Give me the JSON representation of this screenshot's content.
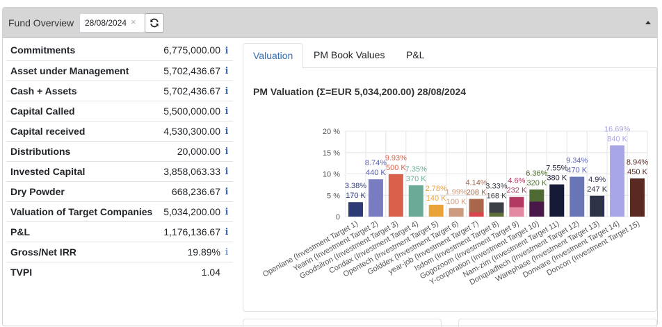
{
  "header": {
    "title": "Fund Overview",
    "date_value": "28/08/2024",
    "clear_glyph": "×"
  },
  "kpis": [
    {
      "label": "Commitments",
      "value": "6,775,000.00"
    },
    {
      "label": "Asset under Management",
      "value": "5,702,436.67"
    },
    {
      "label": "Cash + Assets",
      "value": "5,702,436.67"
    },
    {
      "label": "Capital Called",
      "value": "5,500,000.00"
    },
    {
      "label": "Capital received",
      "value": "4,530,300.00"
    },
    {
      "label": "Distributions",
      "value": "20,000.00"
    },
    {
      "label": "Invested Capital",
      "value": "3,858,063.33"
    },
    {
      "label": "Dry Powder",
      "value": "668,236.67"
    },
    {
      "label": "Valuation of Target Companies",
      "value": "5,034,200.00"
    },
    {
      "label": "P&L",
      "value": "1,176,136.67"
    },
    {
      "label": "Gross/Net IRR",
      "value": "19.89%"
    },
    {
      "label": "TVPI",
      "value": "1.04"
    }
  ],
  "info_glyph": "i",
  "tabs": [
    {
      "label": "Valuation",
      "active": true
    },
    {
      "label": "PM Book Values",
      "active": false
    },
    {
      "label": "P&L",
      "active": false
    }
  ],
  "chart_data": {
    "type": "bar",
    "title": "PM Valuation (Σ=EUR 5,034,200.00) 28/08/2024",
    "xlabel": "",
    "ylabel": "",
    "ylim": [
      0,
      20
    ],
    "yticks": [
      "0",
      "5 %",
      "10 %",
      "15 %",
      "20 %"
    ],
    "grid": true,
    "categories": [
      "Openlane (Investment Target 1)",
      "Yearin (Investment Target 2)",
      "Goodsilron (Investment Target 3)",
      "Condax (Investment Target 4)",
      "Opentech (Investment Target 5)",
      "Golddex (Investment Target 6)",
      "year-job (Investment Target 7)",
      "Isdom (Investment Target 8)",
      "Gogozoom (Investment Target 9)",
      "Y-corporation (Investment Target 10)",
      "Nam-zim (Investment Target 11)",
      "Donquadtech (Investment Target 12)",
      "Warephase (Investment Target 13)",
      "Donware (Investment Target 14)",
      "Doncon (Investment Target 15)"
    ],
    "values": [
      3.38,
      8.74,
      9.93,
      7.35,
      2.78,
      1.99,
      4.14,
      3.33,
      4.6,
      6.36,
      7.55,
      9.34,
      4.9,
      16.69,
      8.94
    ],
    "pct_labels": [
      "3.38%",
      "8.74%",
      "9.93%",
      "7.35%",
      "2.78%",
      "1.99%",
      "4.14%",
      "3.33%",
      "4.6%",
      "6.36%",
      "7.55%",
      "9.34%",
      "4.9%",
      "16.69%",
      "8.94%"
    ],
    "amount_labels": [
      "170 K",
      "440 K",
      "500 K",
      "370 K",
      "140 K",
      "100 K",
      "208 K",
      "168 K",
      "232 K",
      "320 K",
      "380 K",
      "470 K",
      "247 K",
      "840 K",
      "450 K"
    ],
    "colors": [
      "#2e3a73",
      "#7a7cc0",
      "#d9604a",
      "#6aaa96",
      "#eaa338",
      "#cc9a7e",
      "#a8664a",
      "#3c3f46",
      "#b23a62",
      "#4f6b33",
      "#151a37",
      "#6876b8",
      "#2e3248",
      "#a9a6e8",
      "#5a2a22"
    ],
    "label_colors": [
      "#2e3a73",
      "#5961b0",
      "#d9604a",
      "#6aaa96",
      "#eaa338",
      "#cc9a7e",
      "#a8664a",
      "#3c3f46",
      "#b23a62",
      "#4f6b33",
      "#151a37",
      "#5961b0",
      "#2e3248",
      "#a9a6e8",
      "#5a2a22"
    ],
    "stacked_segments": [
      null,
      null,
      null,
      null,
      null,
      null,
      {
        "lower": 1.0,
        "lower_color": "#d9434b"
      },
      {
        "lower": 0.9,
        "lower_color": "#5d6e38"
      },
      {
        "lower": 2.2,
        "lower_color": "#e38aa2"
      },
      {
        "lower": 3.5,
        "lower_color": "#4a1749"
      },
      null,
      null,
      null,
      null,
      null
    ]
  }
}
